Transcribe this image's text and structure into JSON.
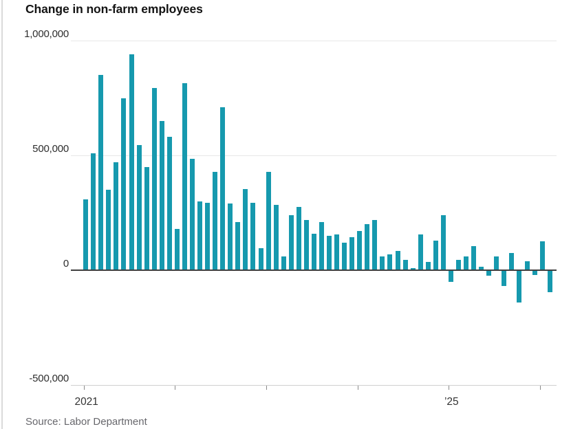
{
  "title": "Change in non-farm employees",
  "source": "Source: Labor Department",
  "colors": {
    "bar": "#1699ae",
    "gridline": "#e7e7e7",
    "baseline": "#cfcfcf",
    "zero_line": "#3f3f3f",
    "axis_text": "#2d2d2d",
    "source_text": "#67676c"
  },
  "y_axis": {
    "ticks": [
      {
        "value": 1000000,
        "label": "1,000,000"
      },
      {
        "value": 500000,
        "label": "500,000"
      },
      {
        "value": 0,
        "label": "0"
      },
      {
        "value": -500000,
        "label": "-500,000"
      }
    ]
  },
  "x_axis": {
    "year_tick_count": 6,
    "labels": [
      {
        "text": "2021",
        "tick_index": 0
      },
      {
        "text": "’25",
        "tick_index": 4
      }
    ]
  },
  "chart_data": {
    "type": "bar",
    "title": "Change in non-farm employees",
    "ylabel": "",
    "xlabel": "",
    "ylim": [
      -500000,
      1000000
    ],
    "yticks": [
      -500000,
      0,
      500000,
      1000000
    ],
    "grid": "horizontal",
    "legend_position": "none",
    "frequency": "monthly",
    "x": [
      "Jan 2021",
      "Feb 2021",
      "Mar 2021",
      "Apr 2021",
      "May 2021",
      "Jun 2021",
      "Jul 2021",
      "Aug 2021",
      "Sep 2021",
      "Oct 2021",
      "Nov 2021",
      "Dec 2021",
      "Jan 2022",
      "Feb 2022",
      "Mar 2022",
      "Apr 2022",
      "May 2022",
      "Jun 2022",
      "Jul 2022",
      "Aug 2022",
      "Sep 2022",
      "Oct 2022",
      "Nov 2022",
      "Dec 2022",
      "Jan 2023",
      "Feb 2023",
      "Mar 2023",
      "Apr 2023",
      "May 2023",
      "Jun 2023",
      "Jul 2023",
      "Aug 2023",
      "Sep 2023",
      "Oct 2023",
      "Nov 2023",
      "Dec 2023",
      "Jan 2024",
      "Feb 2024",
      "Mar 2024",
      "Apr 2024",
      "May 2024",
      "Jun 2024",
      "Jul 2024",
      "Aug 2024",
      "Sep 2024",
      "Oct 2024",
      "Nov 2024",
      "Dec 2024",
      "Jan 2025",
      "Feb 2025",
      "Mar 2025",
      "Apr 2025",
      "May 2025",
      "Jun 2025",
      "Jul 2025",
      "Aug 2025",
      "Sep 2025",
      "Oct 2025",
      "Nov 2025",
      "Dec 2025",
      "Jan 2026",
      "Feb 2026"
    ],
    "values": [
      310000,
      510000,
      850000,
      350000,
      470000,
      750000,
      940000,
      545000,
      450000,
      795000,
      650000,
      580000,
      180000,
      815000,
      485000,
      300000,
      295000,
      430000,
      710000,
      290000,
      210000,
      355000,
      295000,
      95000,
      430000,
      285000,
      60000,
      240000,
      275000,
      220000,
      160000,
      210000,
      150000,
      155000,
      120000,
      145000,
      170000,
      200000,
      220000,
      60000,
      70000,
      85000,
      45000,
      10000,
      155000,
      35000,
      130000,
      240000,
      -50000,
      45000,
      60000,
      105000,
      15000,
      -25000,
      60000,
      -70000,
      75000,
      -140000,
      40000,
      -20000,
      125000,
      -95000
    ]
  }
}
